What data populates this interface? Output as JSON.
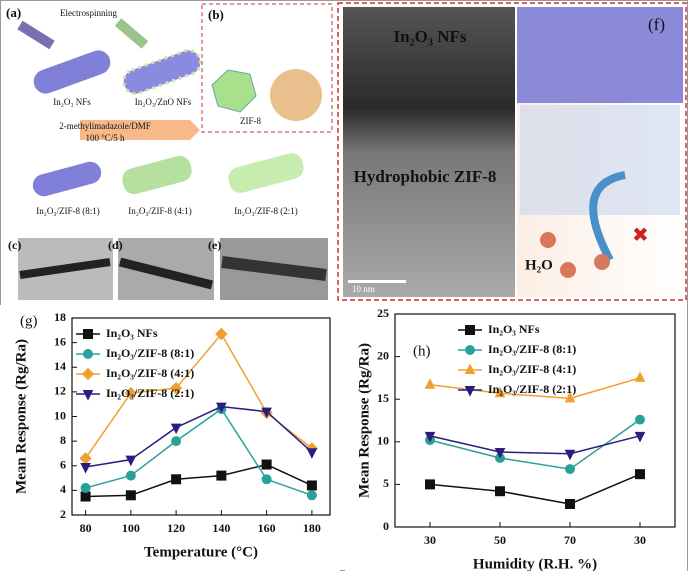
{
  "figure": {
    "a": "(a)",
    "b": "(b)",
    "c": "(c)",
    "d": "(d)",
    "e": "(e)",
    "f": "(f)",
    "electrospinning": "Electrospinning",
    "nf1": "In₂O₃ NFs",
    "nf2": "In₂O₃/ZnO NFs",
    "zif": "ZIF-8",
    "cond1": "2-methylimadazole/DMF",
    "cond2": "100 °C/5 h",
    "p1": "In₂O₃/ZIF-8 (8:1)",
    "p2": "In₂O₃/ZIF-8 (4:1)",
    "p3": "In₂O₃/ZIF-8 (2:1)",
    "tem_top": "In₂O₃ NFs",
    "tem_mid": "Hydrophobic ZIF-8",
    "scale": "10 nm",
    "water": "H₂O"
  },
  "chart_data": [
    {
      "type": "line",
      "label": "(g)",
      "y_label": "Mean Response (Rg/Ra)",
      "x_label": "Temperature (°C)",
      "legend": "upper left",
      "x": [
        80,
        100,
        120,
        140,
        160,
        180
      ],
      "xlim": [
        74,
        188
      ],
      "xticks": [
        80,
        100,
        120,
        140,
        160,
        180
      ],
      "ylim": [
        2,
        18
      ],
      "yticks": [
        2,
        4,
        6,
        8,
        10,
        12,
        14,
        16,
        18
      ],
      "series": [
        {
          "name": "In₂O₃ NFs",
          "color": "#111111",
          "marker": "square",
          "values": [
            3.5,
            3.6,
            4.9,
            5.2,
            6.1,
            4.4
          ]
        },
        {
          "name": "In₂O₃/ZIF-8 (8:1)",
          "color": "#2aa198",
          "marker": "circle",
          "values": [
            4.2,
            5.2,
            8.0,
            10.6,
            4.9,
            3.6
          ]
        },
        {
          "name": "In₂O₃/ZIF-8 (4:1)",
          "color": "#f0a030",
          "marker": "diamond",
          "values": [
            6.6,
            11.9,
            12.3,
            16.7,
            10.3,
            7.4
          ]
        },
        {
          "name": "In₂O₃/ZIF-8 (2:1)",
          "color": "#2b1d80",
          "marker": "triangle-down",
          "values": [
            5.9,
            6.5,
            9.1,
            10.8,
            10.4,
            7.1
          ]
        }
      ]
    },
    {
      "type": "line",
      "label": "(h)",
      "y_label": "Mean Response (Rg/Ra)",
      "x_label": "Humidity (R.H. %)",
      "legend": "upper center",
      "categories": [
        "30",
        "50",
        "70",
        "30"
      ],
      "ylim": [
        0,
        25
      ],
      "yticks": [
        0,
        5,
        10,
        15,
        20,
        25
      ],
      "series": [
        {
          "name": "In₂O₃ NFs",
          "color": "#111111",
          "marker": "square",
          "values": [
            5.0,
            4.2,
            2.7,
            6.2
          ]
        },
        {
          "name": "In₂O₃/ZIF-8 (8:1)",
          "color": "#2aa198",
          "marker": "circle",
          "values": [
            10.2,
            8.1,
            6.8,
            12.6
          ]
        },
        {
          "name": "In₂O₃/ZIF-8 (4:1)",
          "color": "#f0a030",
          "marker": "triangle-up",
          "values": [
            16.7,
            15.7,
            15.1,
            17.5
          ]
        },
        {
          "name": "In₂O₃/ZIF-8 (2:1)",
          "color": "#2b1d80",
          "marker": "triangle-down",
          "values": [
            10.7,
            8.8,
            8.6,
            10.7
          ]
        }
      ]
    }
  ]
}
